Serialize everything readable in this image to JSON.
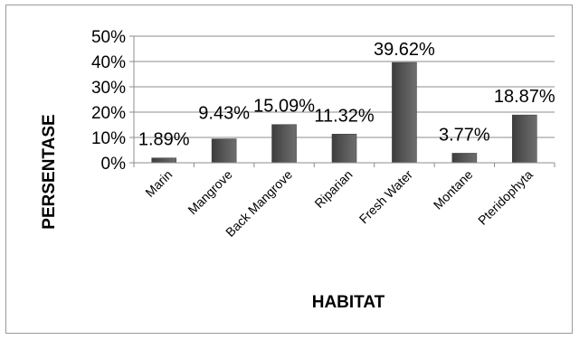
{
  "chart_data": {
    "type": "bar",
    "categories": [
      "Marin",
      "Mangrove",
      "Back Mangrove",
      "Riparian",
      "Fresh Water",
      "Montane",
      "Pteridophyta"
    ],
    "values": [
      1.89,
      9.43,
      15.09,
      11.32,
      39.62,
      3.77,
      18.87
    ],
    "data_labels": [
      "1.89%",
      "9.43%",
      "15.09%",
      "11.32%",
      "39.62%",
      "3.77%",
      "18.87%"
    ],
    "yticks": [
      "0%",
      "10%",
      "20%",
      "30%",
      "40%",
      "50%"
    ],
    "ylim": [
      0,
      50
    ],
    "xlabel": "HABITAT",
    "ylabel": "PERSENTASE",
    "grid": true,
    "legend": "none",
    "bar_color": "#555555"
  }
}
